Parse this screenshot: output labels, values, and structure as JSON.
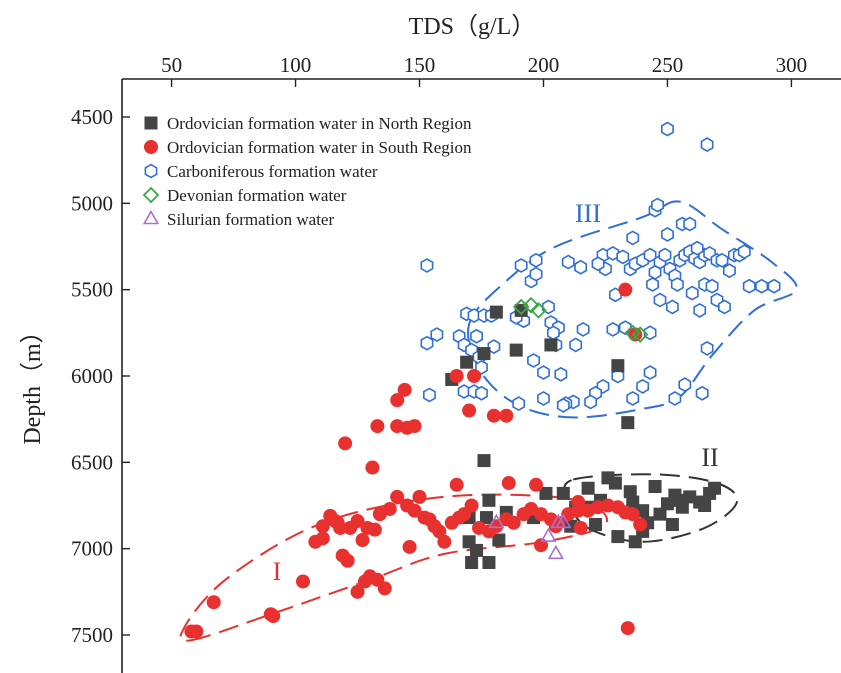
{
  "chart_data": {
    "type": "scatter",
    "xlabel": "TDS（g/L）",
    "ylabel": "Depth（m）",
    "xlim": [
      30,
      320
    ],
    "ylim": [
      4280,
      7720
    ],
    "y_reversed": true,
    "x_axis_position": "top",
    "x_ticks": [
      50,
      100,
      150,
      200,
      250,
      300
    ],
    "y_ticks": [
      4500,
      5000,
      5500,
      6000,
      6500,
      7000,
      7500
    ],
    "legend_position": "top-left",
    "series": [
      {
        "name": "Ordovician formation water in North Region",
        "marker": "square",
        "color": "#444444",
        "points": [
          [
            163,
            6020
          ],
          [
            169,
            5920
          ],
          [
            176,
            5870
          ],
          [
            181,
            5630
          ],
          [
            189,
            5850
          ],
          [
            191,
            5620
          ],
          [
            203,
            5820
          ],
          [
            230,
            5940
          ],
          [
            234,
            6270
          ],
          [
            176,
            6490
          ],
          [
            178,
            6720
          ],
          [
            170,
            6820
          ],
          [
            177,
            6820
          ],
          [
            185,
            6790
          ],
          [
            196,
            6820
          ],
          [
            201,
            6680
          ],
          [
            208,
            6680
          ],
          [
            211,
            6870
          ],
          [
            218,
            6650
          ],
          [
            213,
            6760
          ],
          [
            219,
            6760
          ],
          [
            223,
            6720
          ],
          [
            229,
            6620
          ],
          [
            226,
            6590
          ],
          [
            235,
            6670
          ],
          [
            236,
            6730
          ],
          [
            240,
            6780
          ],
          [
            242,
            6850
          ],
          [
            247,
            6800
          ],
          [
            250,
            6740
          ],
          [
            255,
            6720
          ],
          [
            259,
            6700
          ],
          [
            263,
            6730
          ],
          [
            265,
            6750
          ],
          [
            267,
            6680
          ],
          [
            269,
            6650
          ],
          [
            253,
            6690
          ],
          [
            245,
            6640
          ],
          [
            256,
            6760
          ],
          [
            252,
            6860
          ],
          [
            240,
            6900
          ],
          [
            237,
            6960
          ],
          [
            230,
            6930
          ],
          [
            221,
            6860
          ],
          [
            171,
            7080
          ],
          [
            178,
            7080
          ],
          [
            170,
            6960
          ],
          [
            182,
            6950
          ],
          [
            173,
            7010
          ]
        ]
      },
      {
        "name": "Ordovician formation water in  South Region",
        "marker": "circle",
        "color": "#e8312f",
        "points": [
          [
            58,
            7480
          ],
          [
            60,
            7480
          ],
          [
            67,
            7310
          ],
          [
            90,
            7380
          ],
          [
            91,
            7390
          ],
          [
            103,
            7190
          ],
          [
            108,
            6960
          ],
          [
            111,
            6870
          ],
          [
            111,
            6940
          ],
          [
            114,
            6810
          ],
          [
            116,
            6840
          ],
          [
            117,
            6850
          ],
          [
            118,
            6880
          ],
          [
            119,
            7040
          ],
          [
            121,
            7070
          ],
          [
            122,
            6880
          ],
          [
            125,
            6840
          ],
          [
            127,
            6950
          ],
          [
            129,
            6880
          ],
          [
            132,
            6890
          ],
          [
            134,
            6800
          ],
          [
            138,
            6770
          ],
          [
            141,
            6700
          ],
          [
            145,
            6750
          ],
          [
            148,
            6780
          ],
          [
            150,
            6700
          ],
          [
            152,
            6820
          ],
          [
            154,
            6830
          ],
          [
            156,
            6870
          ],
          [
            158,
            6900
          ],
          [
            160,
            6960
          ],
          [
            163,
            6850
          ],
          [
            166,
            6820
          ],
          [
            168,
            6800
          ],
          [
            171,
            6750
          ],
          [
            174,
            6880
          ],
          [
            178,
            6900
          ],
          [
            181,
            6870
          ],
          [
            185,
            6830
          ],
          [
            188,
            6850
          ],
          [
            192,
            6800
          ],
          [
            195,
            6770
          ],
          [
            199,
            6800
          ],
          [
            203,
            6830
          ],
          [
            206,
            6850
          ],
          [
            210,
            6800
          ],
          [
            214,
            6780
          ],
          [
            218,
            6780
          ],
          [
            222,
            6760
          ],
          [
            226,
            6750
          ],
          [
            230,
            6760
          ],
          [
            233,
            6790
          ],
          [
            236,
            6800
          ],
          [
            239,
            6860
          ],
          [
            133,
            7180
          ],
          [
            136,
            7230
          ],
          [
            128,
            7190
          ],
          [
            130,
            7160
          ],
          [
            125,
            7250
          ],
          [
            146,
            6990
          ],
          [
            120,
            6390
          ],
          [
            131,
            6530
          ],
          [
            133,
            6290
          ],
          [
            141,
            6140
          ],
          [
            144,
            6080
          ],
          [
            141,
            6290
          ],
          [
            145,
            6300
          ],
          [
            148,
            6290
          ],
          [
            165,
            6000
          ],
          [
            172,
            6000
          ],
          [
            170,
            6200
          ],
          [
            180,
            6230
          ],
          [
            185,
            6230
          ],
          [
            165,
            6630
          ],
          [
            199,
            6980
          ],
          [
            197,
            6630
          ],
          [
            233,
            5500
          ],
          [
            237,
            5760
          ],
          [
            234,
            7460
          ],
          [
            214,
            6730
          ],
          [
            186,
            6620
          ],
          [
            205,
            6870
          ],
          [
            215,
            6880
          ]
        ]
      },
      {
        "name": "Carboniferous formation water",
        "marker": "hexagon",
        "color": "#2f6fd6",
        "points": [
          [
            250,
            4570
          ],
          [
            266,
            4660
          ],
          [
            229,
            5530
          ],
          [
            236,
            5200
          ],
          [
            245,
            5040
          ],
          [
            246,
            5010
          ],
          [
            250,
            5180
          ],
          [
            256,
            5120
          ],
          [
            259,
            5120
          ],
          [
            153,
            5360
          ],
          [
            153,
            5810
          ],
          [
            157,
            5760
          ],
          [
            166,
            5770
          ],
          [
            168,
            5820
          ],
          [
            169,
            5640
          ],
          [
            171,
            5850
          ],
          [
            172,
            5650
          ],
          [
            173,
            5770
          ],
          [
            174,
            5890
          ],
          [
            175,
            5950
          ],
          [
            176,
            5650
          ],
          [
            179,
            5650
          ],
          [
            168,
            6090
          ],
          [
            172,
            6090
          ],
          [
            175,
            6100
          ],
          [
            154,
            6110
          ],
          [
            191,
            5360
          ],
          [
            195,
            5450
          ],
          [
            197,
            5410
          ],
          [
            197,
            5330
          ],
          [
            202,
            5600
          ],
          [
            203,
            5690
          ],
          [
            206,
            5720
          ],
          [
            210,
            5340
          ],
          [
            215,
            5370
          ],
          [
            213,
            5820
          ],
          [
            216,
            5730
          ],
          [
            224,
            5300
          ],
          [
            225,
            5380
          ],
          [
            222,
            5350
          ],
          [
            228,
            5290
          ],
          [
            232,
            5310
          ],
          [
            235,
            5380
          ],
          [
            237,
            5350
          ],
          [
            240,
            5330
          ],
          [
            243,
            5300
          ],
          [
            245,
            5400
          ],
          [
            247,
            5340
          ],
          [
            249,
            5300
          ],
          [
            251,
            5380
          ],
          [
            253,
            5420
          ],
          [
            255,
            5330
          ],
          [
            257,
            5300
          ],
          [
            259,
            5280
          ],
          [
            261,
            5320
          ],
          [
            263,
            5340
          ],
          [
            265,
            5300
          ],
          [
            267,
            5290
          ],
          [
            270,
            5330
          ],
          [
            272,
            5330
          ],
          [
            275,
            5390
          ],
          [
            277,
            5300
          ],
          [
            279,
            5300
          ],
          [
            281,
            5280
          ],
          [
            283,
            5480
          ],
          [
            288,
            5480
          ],
          [
            293,
            5480
          ],
          [
            262,
            5260
          ],
          [
            265,
            5470
          ],
          [
            260,
            5520
          ],
          [
            268,
            5480
          ],
          [
            270,
            5560
          ],
          [
            263,
            5620
          ],
          [
            266,
            5840
          ],
          [
            273,
            5600
          ],
          [
            247,
            5560
          ],
          [
            252,
            5600
          ],
          [
            254,
            5470
          ],
          [
            244,
            5470
          ],
          [
            243,
            5980
          ],
          [
            240,
            6060
          ],
          [
            236,
            6130
          ],
          [
            230,
            6000
          ],
          [
            224,
            6060
          ],
          [
            221,
            6100
          ],
          [
            219,
            6150
          ],
          [
            212,
            6150
          ],
          [
            209,
            6160
          ],
          [
            207,
            5990
          ],
          [
            204,
            5750
          ],
          [
            200,
            5980
          ],
          [
            196,
            5910
          ],
          [
            192,
            5680
          ],
          [
            189,
            5660
          ],
          [
            205,
            5820
          ],
          [
            208,
            6170
          ],
          [
            228,
            5730
          ],
          [
            233,
            5720
          ],
          [
            243,
            5750
          ],
          [
            253,
            6130
          ],
          [
            257,
            6050
          ],
          [
            264,
            6100
          ],
          [
            200,
            6130
          ],
          [
            190,
            6160
          ],
          [
            180,
            5830
          ]
        ]
      },
      {
        "name": "Devonian  formation water",
        "marker": "diamond",
        "color": "#3aa845",
        "points": [
          [
            191,
            5600
          ],
          [
            195,
            5590
          ],
          [
            198,
            5620
          ],
          [
            236,
            5750
          ],
          [
            239,
            5760
          ]
        ]
      },
      {
        "name": "Silurian formation water",
        "marker": "triangle",
        "color": "#a771d6",
        "points": [
          [
            181,
            6850
          ],
          [
            202,
            6930
          ],
          [
            206,
            6850
          ],
          [
            208,
            6850
          ],
          [
            205,
            7030
          ]
        ]
      }
    ],
    "regions": [
      {
        "label": "I",
        "color": "#e8312f"
      },
      {
        "label": "II",
        "color": "#333333"
      },
      {
        "label": "III",
        "color": "#2f6fd6"
      }
    ]
  }
}
